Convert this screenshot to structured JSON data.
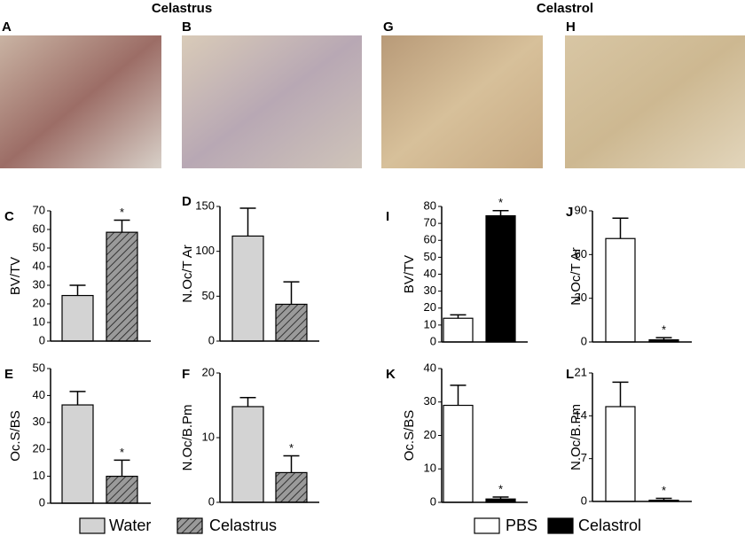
{
  "headings": [
    "Celastrus",
    "Celastrol"
  ],
  "photos": [
    "A",
    "B",
    "G",
    "H"
  ],
  "legend": [
    {
      "name": "Water",
      "color": "#d3d3d3",
      "hatch": false
    },
    {
      "name": "Celastrus",
      "color": "#9a9a9a",
      "hatch": true
    },
    {
      "name": "PBS",
      "color": "#ffffff",
      "hatch": false
    },
    {
      "name": "Celastrol",
      "color": "#000000",
      "hatch": false
    }
  ],
  "chart_data": [
    {
      "type": "bar",
      "title": "C",
      "ylabel": "BV/TV",
      "categories": [
        null,
        null
      ],
      "values": [
        24.5,
        58.5
      ],
      "errors": [
        5.5,
        6.5
      ],
      "annotations": [
        null,
        "*"
      ],
      "colors": [
        "#d3d3d3",
        "#9a9a9a"
      ],
      "hatch": [
        false,
        true
      ],
      "ylim": [
        0,
        70
      ],
      "yticks": [
        0,
        10,
        20,
        30,
        40,
        50,
        60,
        70
      ]
    },
    {
      "type": "bar",
      "title": "D",
      "ylabel": "N.Oc/T Ar",
      "categories": [
        null,
        null
      ],
      "values": [
        117,
        41
      ],
      "errors": [
        31,
        25
      ],
      "annotations": [
        null,
        null
      ],
      "colors": [
        "#d3d3d3",
        "#9a9a9a"
      ],
      "hatch": [
        false,
        true
      ],
      "ylim": [
        0,
        150
      ],
      "yticks": [
        0,
        50,
        100,
        150
      ]
    },
    {
      "type": "bar",
      "title": "E",
      "ylabel": "Oc.S/BS",
      "categories": [
        null,
        null
      ],
      "values": [
        36.5,
        10
      ],
      "errors": [
        5,
        6
      ],
      "annotations": [
        null,
        "*"
      ],
      "colors": [
        "#d3d3d3",
        "#9a9a9a"
      ],
      "hatch": [
        false,
        true
      ],
      "ylim": [
        0,
        50
      ],
      "yticks": [
        0,
        10,
        20,
        30,
        40,
        50
      ]
    },
    {
      "type": "bar",
      "title": "F",
      "ylabel": "N.Oc/B.Pm",
      "categories": [
        null,
        null
      ],
      "values": [
        14.8,
        4.6
      ],
      "errors": [
        1.4,
        2.6
      ],
      "annotations": [
        null,
        "*"
      ],
      "colors": [
        "#d3d3d3",
        "#9a9a9a"
      ],
      "hatch": [
        false,
        true
      ],
      "ylim": [
        0,
        20
      ],
      "yticks": [
        0,
        10,
        20
      ]
    },
    {
      "type": "bar",
      "title": "I",
      "ylabel": "BV/TV",
      "categories": [
        null,
        null
      ],
      "values": [
        14,
        74.5
      ],
      "errors": [
        2,
        3
      ],
      "annotations": [
        null,
        "*"
      ],
      "colors": [
        "#ffffff",
        "#000000"
      ],
      "hatch": [
        false,
        false
      ],
      "ylim": [
        0,
        80
      ],
      "yticks": [
        0,
        10,
        20,
        30,
        40,
        50,
        60,
        70,
        80
      ]
    },
    {
      "type": "bar",
      "title": "J",
      "ylabel": "N.Oc/T Ar",
      "categories": [
        null,
        null
      ],
      "values": [
        71,
        1.5
      ],
      "errors": [
        14,
        1.5
      ],
      "annotations": [
        null,
        "*"
      ],
      "colors": [
        "#ffffff",
        "#000000"
      ],
      "hatch": [
        false,
        false
      ],
      "ylim": [
        0,
        90
      ],
      "yticks": [
        0,
        30,
        60,
        90
      ]
    },
    {
      "type": "bar",
      "title": "K",
      "ylabel": "Oc.S/BS",
      "categories": [
        null,
        null
      ],
      "values": [
        29,
        1
      ],
      "errors": [
        6,
        0.6
      ],
      "annotations": [
        null,
        "*"
      ],
      "colors": [
        "#ffffff",
        "#000000"
      ],
      "hatch": [
        false,
        false
      ],
      "ylim": [
        0,
        40
      ],
      "yticks": [
        0,
        10,
        20,
        30,
        40
      ]
    },
    {
      "type": "bar",
      "title": "L",
      "ylabel": "N.Oc/B.Pm",
      "categories": [
        null,
        null
      ],
      "values": [
        15.5,
        0.2
      ],
      "errors": [
        4,
        0.3
      ],
      "annotations": [
        null,
        "*"
      ],
      "colors": [
        "#ffffff",
        "#000000"
      ],
      "hatch": [
        false,
        false
      ],
      "ylim": [
        0,
        21
      ],
      "yticks": [
        0,
        7,
        14,
        21
      ]
    }
  ]
}
